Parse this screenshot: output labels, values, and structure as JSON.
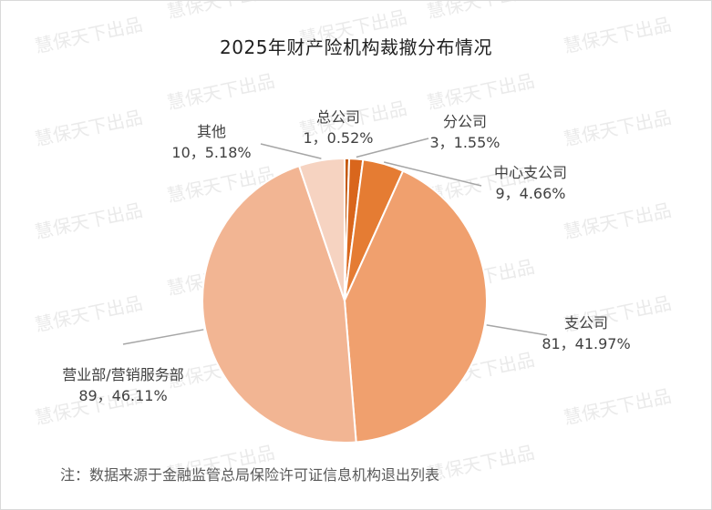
{
  "chart_data": {
    "type": "pie",
    "title": "2025年财产险机构裁撤分布情况",
    "slices": [
      {
        "name": "总公司",
        "value": 1,
        "percent": "0.52%",
        "label": "1，0.52%",
        "color": "#c55a11"
      },
      {
        "name": "分公司",
        "value": 3,
        "percent": "1.55%",
        "label": "3，1.55%",
        "color": "#d9661c"
      },
      {
        "name": "中心支公司",
        "value": 9,
        "percent": "4.66%",
        "label": "9，4.66%",
        "color": "#e57c33"
      },
      {
        "name": "支公司",
        "value": 81,
        "percent": "41.97%",
        "label": "81，41.97%",
        "color": "#f0a06e"
      },
      {
        "name": "营业部/营销服务部",
        "value": 89,
        "percent": "46.11%",
        "label": "89，46.11%",
        "color": "#f2b593"
      },
      {
        "name": "其他",
        "value": 10,
        "percent": "5.18%",
        "label": "10，5.18%",
        "color": "#f6d3c1"
      }
    ],
    "footnote": "注：数据来源于金融监管总局保险许可证信息机构退出列表",
    "watermark": "慧保天下出品"
  }
}
